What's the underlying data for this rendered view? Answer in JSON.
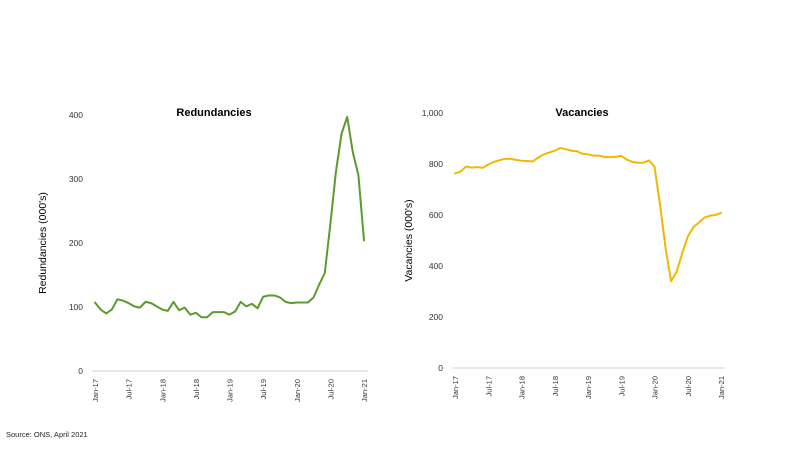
{
  "source": "Source: ONS, April 2021",
  "chart_data": [
    {
      "type": "line",
      "title": "Redundancies",
      "xlabel": "",
      "ylabel": "Redundancies (000's)",
      "ylim": [
        0,
        400
      ],
      "yticks": [
        "0",
        "100",
        "200",
        "300",
        "400"
      ],
      "xticks": [
        "Jan-17",
        "Jul-17",
        "Jan-18",
        "Jul-18",
        "Jan-19",
        "Jul-19",
        "Jan-20",
        "Jul-20",
        "Jan-21"
      ],
      "grid": false,
      "color": "#5a9a2e",
      "series": [
        {
          "x": [
            "Jan-17",
            "Feb-17",
            "Mar-17",
            "Apr-17",
            "May-17",
            "Jun-17",
            "Jul-17",
            "Aug-17",
            "Sep-17",
            "Oct-17",
            "Nov-17",
            "Dec-17",
            "Jan-18",
            "Feb-18",
            "Mar-18",
            "Apr-18",
            "May-18",
            "Jun-18",
            "Jul-18",
            "Aug-18",
            "Sep-18",
            "Oct-18",
            "Nov-18",
            "Dec-18",
            "Jan-19",
            "Feb-19",
            "Mar-19",
            "Apr-19",
            "May-19",
            "Jun-19",
            "Jul-19",
            "Aug-19",
            "Sep-19",
            "Oct-19",
            "Nov-19",
            "Dec-19",
            "Jan-20",
            "Feb-20",
            "Mar-20",
            "Apr-20",
            "May-20",
            "Jun-20",
            "Jul-20",
            "Aug-20",
            "Sep-20",
            "Oct-20",
            "Nov-20",
            "Dec-20",
            "Jan-21"
          ],
          "values": [
            107,
            96,
            90,
            96,
            112,
            110,
            106,
            101,
            99,
            108,
            106,
            101,
            96,
            94,
            108,
            95,
            99,
            88,
            91,
            84,
            84,
            92,
            92,
            92,
            88,
            93,
            108,
            101,
            105,
            98,
            116,
            118,
            118,
            115,
            108,
            106,
            107,
            107,
            107,
            115,
            135,
            153,
            230,
            312,
            371,
            397,
            342,
            306,
            204
          ]
        }
      ]
    },
    {
      "type": "line",
      "title": "Vacancies",
      "xlabel": "",
      "ylabel": "Vacancies (000's)",
      "ylim": [
        0,
        1000
      ],
      "yticks": [
        "0",
        "200",
        "400",
        "600",
        "800",
        "1,000"
      ],
      "xticks": [
        "Jan-17",
        "Jul-17",
        "Jan-18",
        "Jul-18",
        "Jan-19",
        "Jul-19",
        "Jan-20",
        "Jul-20",
        "Jan-21"
      ],
      "grid": false,
      "color": "#f2b800",
      "series": [
        {
          "x": [
            "Jan-17",
            "Feb-17",
            "Mar-17",
            "Apr-17",
            "May-17",
            "Jun-17",
            "Jul-17",
            "Aug-17",
            "Sep-17",
            "Oct-17",
            "Nov-17",
            "Dec-17",
            "Jan-18",
            "Feb-18",
            "Mar-18",
            "Apr-18",
            "May-18",
            "Jun-18",
            "Jul-18",
            "Aug-18",
            "Sep-18",
            "Oct-18",
            "Nov-18",
            "Dec-18",
            "Jan-19",
            "Feb-19",
            "Mar-19",
            "Apr-19",
            "May-19",
            "Jun-19",
            "Jul-19",
            "Aug-19",
            "Sep-19",
            "Oct-19",
            "Nov-19",
            "Dec-19",
            "Jan-20",
            "Feb-20",
            "Mar-20",
            "Apr-20",
            "May-20",
            "Jun-20",
            "Jul-20",
            "Aug-20",
            "Sep-20",
            "Oct-20",
            "Nov-20",
            "Dec-20",
            "Jan-21"
          ],
          "values": [
            763,
            770,
            790,
            786,
            788,
            785,
            798,
            808,
            815,
            820,
            820,
            816,
            813,
            812,
            810,
            825,
            838,
            845,
            852,
            863,
            858,
            852,
            850,
            840,
            838,
            833,
            833,
            827,
            827,
            828,
            832,
            817,
            808,
            805,
            805,
            814,
            790,
            640,
            470,
            340,
            378,
            450,
            515,
            552,
            570,
            590,
            597,
            600,
            608
          ]
        }
      ]
    }
  ]
}
